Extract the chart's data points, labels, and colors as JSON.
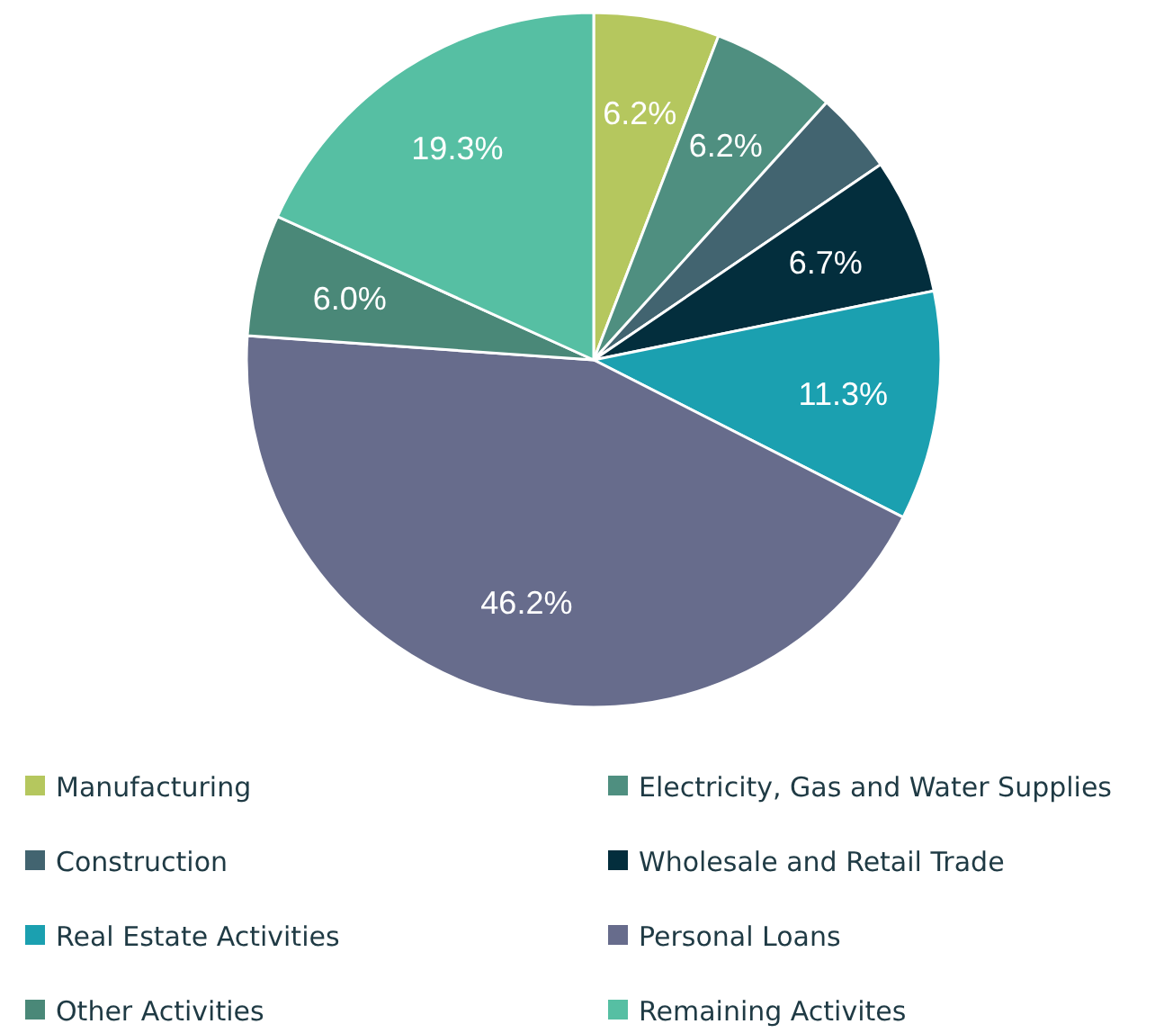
{
  "chart_data": {
    "type": "pie",
    "categories": [
      "Manufacturing",
      "Electricity, Gas and Water Supplies",
      "Construction",
      "Wholesale and Retail Trade",
      "Real Estate Activities",
      "Personal Loans",
      "Other Activities",
      "Remaining Activites"
    ],
    "values": [
      6.2,
      6.2,
      4.0,
      6.7,
      11.3,
      46.2,
      6.0,
      19.3
    ],
    "value_labels": [
      "6.2%",
      "6.2%",
      null,
      "6.7%",
      "11.3%",
      "46.2%",
      "6.0%",
      "19.3%"
    ],
    "colors": [
      "#b5c75e",
      "#4f8f80",
      "#426470",
      "#032e3d",
      "#1ba0b0",
      "#676c8c",
      "#4a8878",
      "#56bfa3"
    ],
    "legend": "bottom"
  }
}
